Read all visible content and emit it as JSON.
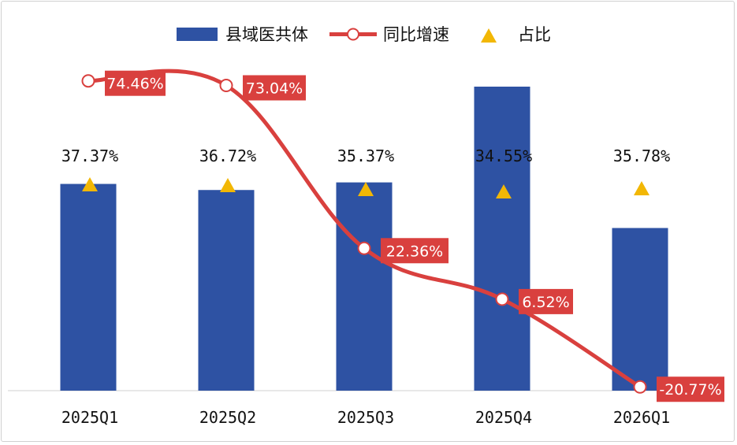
{
  "chart_data": {
    "type": "bar",
    "categories": [
      "2025Q1",
      "2025Q2",
      "2025Q3",
      "2025Q4",
      "2026Q1"
    ],
    "series": [
      {
        "name": "县域医共体",
        "kind": "bar",
        "color": "#2E52A3",
        "relative_values": [
          0.68,
          0.66,
          0.685,
          1.0,
          0.535
        ],
        "labels_shown": false
      },
      {
        "name": "同比增速",
        "kind": "line",
        "color": "#D9403E",
        "label_bg": "#D9403E",
        "values": [
          74.46,
          73.04,
          22.36,
          6.52,
          -20.77
        ],
        "labels": [
          "74.46%",
          "73.04%",
          "22.36%",
          "6.52%",
          "-20.77%"
        ]
      },
      {
        "name": "占比",
        "kind": "marker",
        "color": "#F2B705",
        "values": [
          37.37,
          36.72,
          35.37,
          34.55,
          35.78
        ],
        "labels": [
          "37.37%",
          "36.72%",
          "35.37%",
          "34.55%",
          "35.78%"
        ]
      }
    ],
    "legend_position": "top-center",
    "grid": false,
    "axes_hidden": true
  }
}
